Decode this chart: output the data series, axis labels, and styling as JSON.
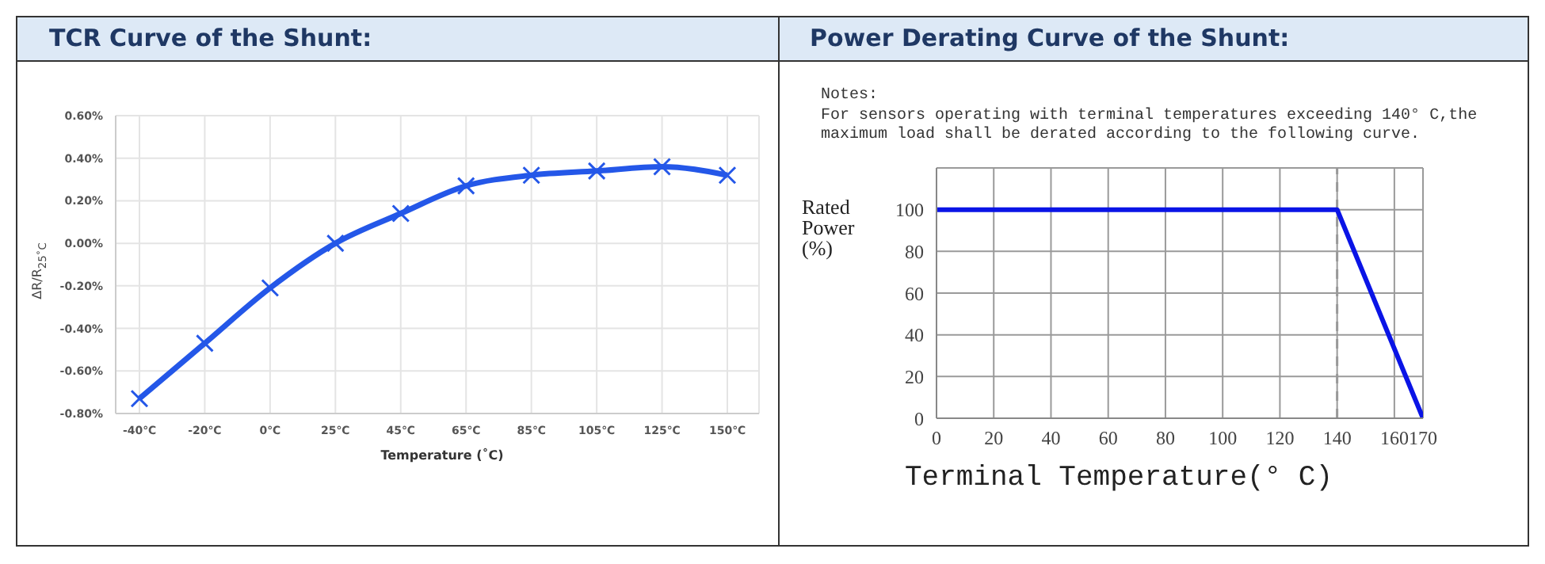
{
  "chart_data": [
    {
      "type": "line",
      "title": "TCR Curve of the Shunt:",
      "xlabel": "Temperature (˚C)",
      "ylabel": "ΔR/R$_{25˚C}$",
      "categories": [
        "-40℃",
        "-20℃",
        "0℃",
        "25℃",
        "45℃",
        "65℃",
        "85℃",
        "105℃",
        "125℃",
        "150℃"
      ],
      "series": [
        {
          "color": "#2457e8",
          "values": [
            -0.73,
            -0.47,
            -0.21,
            0.0,
            0.14,
            0.27,
            0.32,
            0.34,
            0.36,
            0.32
          ]
        }
      ],
      "ylim": [
        -0.8,
        0.6
      ],
      "yticks": [
        {
          "value": -0.8,
          "label": "-0.80%"
        },
        {
          "value": -0.6,
          "label": "-0.60%"
        },
        {
          "value": -0.4,
          "label": "-0.40%"
        },
        {
          "value": -0.2,
          "label": "-0.20%"
        },
        {
          "value": 0,
          "label": "0.00%"
        },
        {
          "value": 0.2,
          "label": "0.20%"
        },
        {
          "value": 0.4,
          "label": "0.40%"
        },
        {
          "value": 0.6,
          "label": "0.60%"
        }
      ],
      "grid": true,
      "marker": "cross"
    },
    {
      "type": "line",
      "title": "Power Derating Curve of the Shunt:",
      "xlabel": "Terminal Temperature(° C)",
      "ylabel": "Rated Power (%)",
      "annotations": [
        "Notes:",
        "For sensors operating with terminal temperatures exceeding 140° C,the maximum load shall be derated according to the following curve."
      ],
      "x": [
        0,
        140,
        170
      ],
      "series": [
        {
          "color": "#0a14e6",
          "values": [
            100,
            100,
            0
          ]
        }
      ],
      "xlim": [
        0,
        170
      ],
      "xticks": [
        0,
        20,
        40,
        60,
        80,
        100,
        120,
        140,
        160,
        170
      ],
      "ylim": [
        0,
        120
      ],
      "yticks": [
        0,
        20,
        40,
        60,
        80,
        100,
        {
          "value": 120,
          "label": null
        }
      ],
      "grid": true,
      "ref_lines": [
        {
          "axis": "x",
          "value": 140,
          "color": "#999999",
          "line_style": "dashed"
        }
      ]
    }
  ]
}
